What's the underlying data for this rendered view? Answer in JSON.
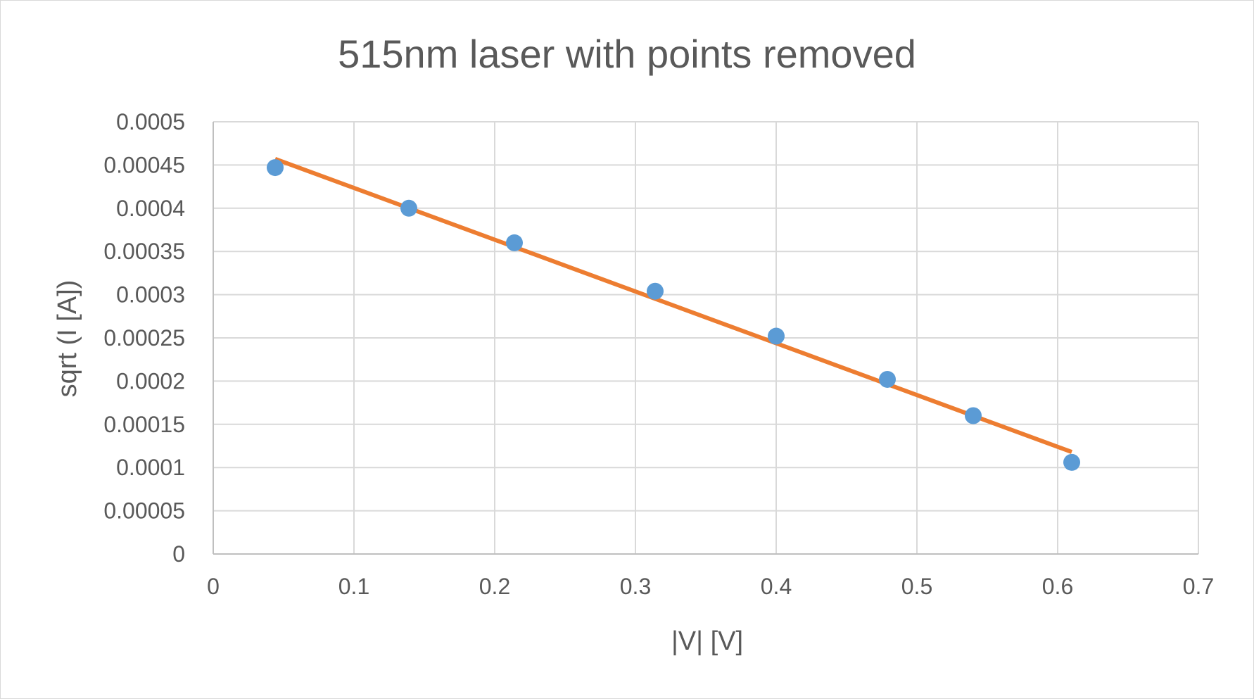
{
  "chart_data": {
    "type": "scatter",
    "title": "515nm laser with points removed",
    "xlabel": "|V| [V]",
    "ylabel": "sqrt (I [A])",
    "xlim": [
      0,
      0.7
    ],
    "ylim": [
      0,
      0.0005
    ],
    "grid": true,
    "legend": "none",
    "x_ticks": [
      "0",
      "0.1",
      "0.2",
      "0.3",
      "0.4",
      "0.5",
      "0.6",
      "0.7"
    ],
    "y_ticks": [
      "0",
      "0.00005",
      "0.0001",
      "0.00015",
      "0.0002",
      "0.00025",
      "0.0003",
      "0.00035",
      "0.0004",
      "0.00045",
      "0.0005"
    ],
    "series": [
      {
        "type": "scatter",
        "color": "#5B9BD5",
        "x": [
          0.044,
          0.139,
          0.214,
          0.314,
          0.4,
          0.479,
          0.54,
          0.61
        ],
        "y": [
          0.000447,
          0.0004,
          0.00036,
          0.000304,
          0.000252,
          0.000202,
          0.00016,
          0.000106
        ]
      },
      {
        "type": "linear-trendline",
        "color": "#ED7D31",
        "x": [
          0.044,
          0.61
        ],
        "y": [
          0.000457,
          0.000118
        ]
      }
    ]
  }
}
